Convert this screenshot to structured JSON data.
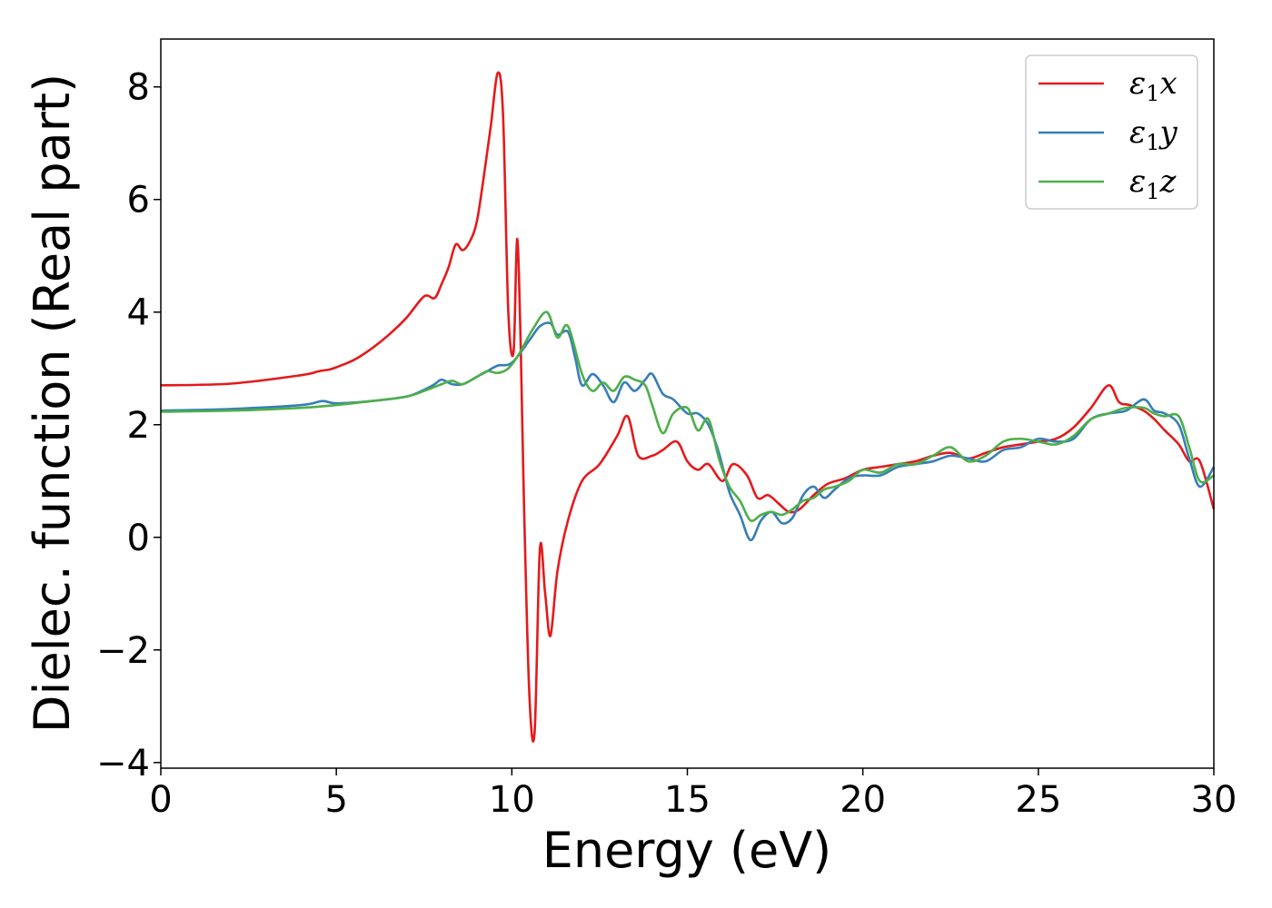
{
  "chart_data": {
    "type": "line",
    "title": "",
    "xlabel": "Energy (eV)",
    "ylabel": "Dielec. function (Real part)",
    "xlim": [
      0,
      30
    ],
    "ylim": [
      -4.1,
      8.85
    ],
    "xticks": [
      0,
      5,
      10,
      15,
      20,
      25,
      30
    ],
    "xtick_labels": [
      "0",
      "5",
      "10",
      "15",
      "20",
      "25",
      "30"
    ],
    "yticks": [
      -4,
      -2,
      0,
      2,
      4,
      6,
      8
    ],
    "ytick_labels": [
      "−4",
      "−2",
      "0",
      "2",
      "4",
      "6",
      "8"
    ],
    "grid": false,
    "legend_position": "top-right",
    "series": [
      {
        "name": "ε1x",
        "label_base": "ε",
        "label_sub": "1",
        "label_var": "x",
        "color": "#e41a1c",
        "x": [
          0,
          2,
          4,
          4.5,
          4.8,
          5,
          5.5,
          6,
          6.5,
          7,
          7.5,
          7.8,
          8.0,
          8.2,
          8.4,
          8.6,
          8.8,
          9.0,
          9.2,
          9.4,
          9.6,
          9.75,
          9.9,
          10.05,
          10.15,
          10.25,
          10.35,
          10.5,
          10.65,
          10.8,
          10.95,
          11.1,
          11.3,
          11.6,
          12.0,
          12.5,
          13.0,
          13.3,
          13.6,
          14.0,
          14.3,
          14.7,
          15.0,
          15.3,
          15.6,
          16.0,
          16.3,
          16.7,
          17.0,
          17.3,
          17.6,
          17.9,
          18.2,
          18.6,
          19.0,
          19.5,
          20.0,
          20.5,
          21.0,
          21.5,
          22.0,
          22.5,
          23.0,
          23.5,
          24.0,
          24.5,
          25.0,
          25.5,
          26.0,
          26.5,
          27.0,
          27.3,
          27.6,
          28.0,
          28.3,
          28.6,
          29.0,
          29.3,
          29.6,
          30.0
        ],
        "y": [
          2.7,
          2.73,
          2.88,
          2.95,
          2.98,
          3.02,
          3.15,
          3.35,
          3.6,
          3.9,
          4.28,
          4.25,
          4.5,
          4.8,
          5.2,
          5.1,
          5.25,
          5.6,
          6.4,
          7.3,
          8.25,
          7.5,
          4.0,
          3.3,
          5.3,
          3.5,
          0.5,
          -2.8,
          -3.45,
          -0.2,
          -1.0,
          -1.75,
          -0.6,
          0.3,
          1.0,
          1.3,
          1.8,
          2.15,
          1.45,
          1.45,
          1.55,
          1.7,
          1.35,
          1.2,
          1.3,
          1.0,
          1.3,
          1.1,
          0.7,
          0.75,
          0.6,
          0.45,
          0.5,
          0.75,
          0.95,
          1.05,
          1.2,
          1.25,
          1.3,
          1.35,
          1.45,
          1.5,
          1.4,
          1.5,
          1.6,
          1.65,
          1.7,
          1.75,
          1.95,
          2.3,
          2.7,
          2.4,
          2.35,
          2.25,
          2.1,
          1.9,
          1.65,
          1.35,
          1.35,
          0.5
        ]
      },
      {
        "name": "ε1y",
        "label_base": "ε",
        "label_sub": "1",
        "label_var": "y",
        "color": "#377eb8",
        "x": [
          0,
          2,
          4,
          4.6,
          5,
          6,
          7,
          7.5,
          7.8,
          8.0,
          8.3,
          8.6,
          9.0,
          9.3,
          9.6,
          10.0,
          10.5,
          10.8,
          11.1,
          11.3,
          11.6,
          11.8,
          12.0,
          12.3,
          12.6,
          12.9,
          13.2,
          13.5,
          13.8,
          14.0,
          14.3,
          14.6,
          15.0,
          15.3,
          15.6,
          15.9,
          16.2,
          16.5,
          16.8,
          17.1,
          17.4,
          17.7,
          18.0,
          18.3,
          18.6,
          18.9,
          19.2,
          19.6,
          20.0,
          20.5,
          21.0,
          21.5,
          22.0,
          22.5,
          23.0,
          23.5,
          24.0,
          24.5,
          25.0,
          25.5,
          26.0,
          26.5,
          27.0,
          27.5,
          28.0,
          28.3,
          28.6,
          29.0,
          29.3,
          29.6,
          30.0
        ],
        "y": [
          2.25,
          2.28,
          2.35,
          2.42,
          2.38,
          2.42,
          2.5,
          2.62,
          2.72,
          2.8,
          2.72,
          2.72,
          2.85,
          2.95,
          3.05,
          3.1,
          3.5,
          3.75,
          3.8,
          3.6,
          3.65,
          3.2,
          2.7,
          2.9,
          2.7,
          2.4,
          2.75,
          2.6,
          2.8,
          2.9,
          2.55,
          2.45,
          2.2,
          2.2,
          2.0,
          1.5,
          0.8,
          0.4,
          -0.05,
          0.3,
          0.45,
          0.25,
          0.35,
          0.75,
          0.9,
          0.7,
          0.85,
          1.05,
          1.1,
          1.1,
          1.25,
          1.3,
          1.35,
          1.45,
          1.4,
          1.35,
          1.55,
          1.6,
          1.75,
          1.7,
          1.75,
          2.1,
          2.2,
          2.25,
          2.45,
          2.25,
          2.2,
          2.0,
          1.4,
          0.9,
          1.25
        ]
      },
      {
        "name": "ε1z",
        "label_base": "ε",
        "label_sub": "1",
        "label_var": "z",
        "color": "#4daf4a",
        "x": [
          0,
          2,
          4,
          5,
          6,
          7,
          7.5,
          8.0,
          8.3,
          8.6,
          9.0,
          9.3,
          9.6,
          9.9,
          10.2,
          10.6,
          11.0,
          11.3,
          11.6,
          12.0,
          12.3,
          12.6,
          12.9,
          13.2,
          13.5,
          13.8,
          14.0,
          14.3,
          14.6,
          15.0,
          15.3,
          15.6,
          15.9,
          16.2,
          16.5,
          16.8,
          17.1,
          17.4,
          17.7,
          18.0,
          18.3,
          18.6,
          18.9,
          19.2,
          19.6,
          20.0,
          20.5,
          21.0,
          21.5,
          22.0,
          22.5,
          23.0,
          23.5,
          24.0,
          24.5,
          25.0,
          25.5,
          26.0,
          26.5,
          27.0,
          27.5,
          28.0,
          28.3,
          28.6,
          29.0,
          29.3,
          29.6,
          30.0
        ],
        "y": [
          2.23,
          2.25,
          2.3,
          2.35,
          2.42,
          2.5,
          2.6,
          2.72,
          2.78,
          2.72,
          2.85,
          2.95,
          2.92,
          3.0,
          3.25,
          3.7,
          4.0,
          3.55,
          3.75,
          2.9,
          2.6,
          2.75,
          2.6,
          2.85,
          2.8,
          2.7,
          2.35,
          1.85,
          2.2,
          2.3,
          1.9,
          2.1,
          1.4,
          0.9,
          0.65,
          0.3,
          0.4,
          0.45,
          0.4,
          0.5,
          0.65,
          0.7,
          0.85,
          0.9,
          1.0,
          1.2,
          1.15,
          1.3,
          1.3,
          1.45,
          1.6,
          1.35,
          1.45,
          1.7,
          1.75,
          1.7,
          1.65,
          1.8,
          2.1,
          2.2,
          2.3,
          2.3,
          2.2,
          2.15,
          2.15,
          1.6,
          1.0,
          1.1
        ]
      }
    ]
  }
}
